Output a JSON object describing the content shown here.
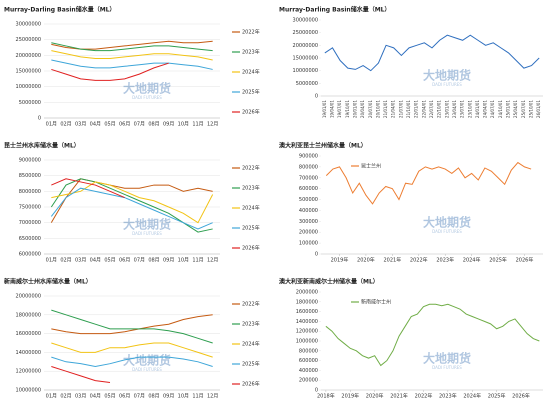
{
  "watermark": {
    "text": "大地期货",
    "subtext": "DADI FUTURES"
  },
  "chart_data": [
    {
      "type": "line",
      "title": "Murray-Darling Basin储水量（ML）",
      "legend": "right",
      "grid": true,
      "categories": [
        "01月",
        "02月",
        "03月",
        "04月",
        "05月",
        "06月",
        "07月",
        "08月",
        "09月",
        "10月",
        "11月",
        "12月"
      ],
      "ylim": [
        0,
        30000000
      ],
      "yticks": [
        0,
        5000000,
        10000000,
        15000000,
        20000000,
        25000000,
        30000000
      ],
      "series": [
        {
          "name": "2022年",
          "color": "#c55a11",
          "values": [
            23500000,
            22500000,
            22000000,
            22000000,
            22500000,
            23000000,
            23500000,
            24000000,
            24500000,
            24000000,
            24000000,
            24500000
          ]
        },
        {
          "name": "2023年",
          "color": "#2e9e4f",
          "values": [
            24000000,
            23000000,
            22000000,
            21500000,
            21500000,
            22000000,
            22500000,
            23000000,
            23000000,
            22500000,
            22000000,
            21500000
          ]
        },
        {
          "name": "2024年",
          "color": "#f2c314",
          "values": [
            21500000,
            20500000,
            19500000,
            19000000,
            19000000,
            19500000,
            20000000,
            20500000,
            20500000,
            20000000,
            19500000,
            18500000
          ]
        },
        {
          "name": "2025年",
          "color": "#3ea6d9",
          "values": [
            18500000,
            17500000,
            16500000,
            16000000,
            16000000,
            16500000,
            17000000,
            17500000,
            17500000,
            17000000,
            16500000,
            15500000
          ]
        },
        {
          "name": "2026年",
          "color": "#e02020",
          "values": [
            15500000,
            14000000,
            12500000,
            12000000,
            12000000,
            12500000,
            14000000,
            16000000,
            17500000,
            null,
            null,
            null
          ]
        }
      ]
    },
    {
      "type": "line",
      "title": "Murray-Darling Basin储水量（ML）",
      "xtick_rotation": -90,
      "grid": false,
      "categories": [
        "19/01/01",
        "19/04/01",
        "19/07/01",
        "19/10/01",
        "20/01/01",
        "20/04/01",
        "20/07/01",
        "20/10/01",
        "21/01/01",
        "21/04/01",
        "21/07/01",
        "21/10/01",
        "22/01/01",
        "22/04/01",
        "22/07/01",
        "22/10/01",
        "23/01/01",
        "23/04/01",
        "23/07/01",
        "23/10/01",
        "24/01/01",
        "24/04/01",
        "24/07/01",
        "24/10/01",
        "25/01/01",
        "25/04/01",
        "25/07/01",
        "25/10/01",
        "26/01/01"
      ],
      "ylim": [
        0,
        30000000
      ],
      "yticks": [
        0,
        5000000,
        10000000,
        15000000,
        20000000,
        25000000,
        30000000
      ],
      "color": "#2f6fbf",
      "values": [
        17000000,
        19000000,
        14000000,
        11000000,
        10500000,
        12000000,
        10000000,
        13000000,
        20000000,
        19000000,
        16000000,
        19000000,
        20000000,
        21000000,
        19000000,
        22000000,
        24000000,
        23000000,
        22000000,
        24000000,
        22000000,
        20000000,
        21000000,
        19000000,
        17000000,
        14000000,
        11000000,
        12000000,
        15000000
      ]
    },
    {
      "type": "line",
      "title": "昆士兰州水库储水量（ML）",
      "legend": "right",
      "grid": true,
      "categories": [
        "01月",
        "02月",
        "03月",
        "04月",
        "05月",
        "06月",
        "07月",
        "08月",
        "09月",
        "10月",
        "11月",
        "12月"
      ],
      "ylim": [
        6000000,
        9000000
      ],
      "yticks": [
        6000000,
        6500000,
        7000000,
        7500000,
        8000000,
        8500000,
        9000000
      ],
      "series": [
        {
          "name": "2022年",
          "color": "#c55a11",
          "values": [
            7000000,
            7800000,
            8400000,
            8300000,
            8200000,
            8100000,
            8100000,
            8200000,
            8200000,
            8000000,
            8100000,
            8000000
          ]
        },
        {
          "name": "2023年",
          "color": "#2e9e4f",
          "values": [
            7500000,
            8200000,
            8400000,
            8300000,
            8100000,
            7900000,
            7700000,
            7500000,
            7300000,
            7000000,
            6700000,
            6800000
          ]
        },
        {
          "name": "2024年",
          "color": "#f2c314",
          "values": [
            7800000,
            7900000,
            8000000,
            8300000,
            8200000,
            8000000,
            7800000,
            7700000,
            7500000,
            7300000,
            7000000,
            7900000
          ]
        },
        {
          "name": "2025年",
          "color": "#3ea6d9",
          "values": [
            7200000,
            7800000,
            8100000,
            8000000,
            7900000,
            7800000,
            7600000,
            7400000,
            7200000,
            7000000,
            6800000,
            7000000
          ]
        },
        {
          "name": "2026年",
          "color": "#e02020",
          "values": [
            8200000,
            8400000,
            8300000,
            8200000,
            8000000,
            7800000,
            null,
            null,
            null,
            null,
            null,
            null
          ]
        }
      ]
    },
    {
      "type": "line",
      "title": "澳大利亚昆士兰州储水量（ML）",
      "legend": "top-left",
      "grid": false,
      "xlim": [
        2018.3,
        2026.7
      ],
      "xticks": [
        {
          "value": 2019,
          "label": "2019年"
        },
        {
          "value": 2020,
          "label": "2020年"
        },
        {
          "value": 2021,
          "label": "2021年"
        },
        {
          "value": 2022,
          "label": "2022年"
        },
        {
          "value": 2023,
          "label": "2023年"
        },
        {
          "value": 2024,
          "label": "2024年"
        },
        {
          "value": 2025,
          "label": "2025年"
        },
        {
          "value": 2026,
          "label": "2026年"
        }
      ],
      "ylim": [
        0,
        900000
      ],
      "yticks": [
        0,
        100000,
        200000,
        300000,
        400000,
        500000,
        600000,
        700000,
        800000,
        900000
      ],
      "x": [
        2018.5,
        2018.75,
        2019,
        2019.25,
        2019.5,
        2019.75,
        2020,
        2020.25,
        2020.5,
        2020.75,
        2021,
        2021.25,
        2021.5,
        2021.75,
        2022,
        2022.25,
        2022.5,
        2022.75,
        2023,
        2023.25,
        2023.5,
        2023.75,
        2024,
        2024.25,
        2024.5,
        2024.75,
        2025,
        2025.25,
        2025.5,
        2025.75,
        2026,
        2026.25
      ],
      "series": [
        {
          "name": "昆士兰州",
          "color": "#ed7d31",
          "values": [
            720000,
            780000,
            800000,
            700000,
            560000,
            650000,
            540000,
            460000,
            560000,
            620000,
            600000,
            500000,
            650000,
            640000,
            760000,
            800000,
            780000,
            800000,
            780000,
            740000,
            790000,
            700000,
            740000,
            680000,
            790000,
            760000,
            700000,
            640000,
            770000,
            840000,
            800000,
            780000
          ]
        }
      ]
    },
    {
      "type": "line",
      "title": "新南威尔士州水库储水量（ML）",
      "legend": "right",
      "grid": true,
      "categories": [
        "01月",
        "02月",
        "03月",
        "04月",
        "05月",
        "06月",
        "07月",
        "08月",
        "09月",
        "10月",
        "11月",
        "12月"
      ],
      "ylim": [
        10000000,
        20000000
      ],
      "yticks": [
        10000000,
        12000000,
        14000000,
        16000000,
        18000000,
        20000000
      ],
      "series": [
        {
          "name": "2022年",
          "color": "#c55a11",
          "values": [
            16500000,
            16200000,
            16000000,
            16000000,
            16000000,
            16200000,
            16500000,
            16800000,
            17000000,
            17500000,
            17800000,
            18000000
          ]
        },
        {
          "name": "2023年",
          "color": "#2e9e4f",
          "values": [
            18500000,
            18000000,
            17500000,
            17000000,
            16500000,
            16500000,
            16500000,
            16500000,
            16300000,
            16000000,
            15500000,
            15000000
          ]
        },
        {
          "name": "2024年",
          "color": "#f2c314",
          "values": [
            15000000,
            14500000,
            14000000,
            14000000,
            14500000,
            14500000,
            14800000,
            15000000,
            15000000,
            14500000,
            14000000,
            13500000
          ]
        },
        {
          "name": "2025年",
          "color": "#3ea6d9",
          "values": [
            13500000,
            13000000,
            12800000,
            12500000,
            12800000,
            13200000,
            13500000,
            13500000,
            13500000,
            13300000,
            13000000,
            12500000
          ]
        },
        {
          "name": "2026年",
          "color": "#e02020",
          "values": [
            12500000,
            12000000,
            11500000,
            11000000,
            10800000,
            null,
            null,
            null,
            null,
            null,
            null,
            null
          ]
        }
      ]
    },
    {
      "type": "line",
      "title": "澳大利亚新南威尔士州储水量（ML）",
      "legend": "top-left",
      "grid": false,
      "xlim": [
        2017.8,
        2026.9
      ],
      "xticks": [
        {
          "value": 2018,
          "label": "2018年"
        },
        {
          "value": 2019,
          "label": "2019年"
        },
        {
          "value": 2020,
          "label": "2020年"
        },
        {
          "value": 2021,
          "label": "2021年"
        },
        {
          "value": 2022,
          "label": "2022年"
        },
        {
          "value": 2023,
          "label": "2023年"
        },
        {
          "value": 2024,
          "label": "2024年"
        },
        {
          "value": 2025,
          "label": "2025年"
        },
        {
          "value": 2026,
          "label": "2026年"
        }
      ],
      "ylim": [
        0,
        2000000
      ],
      "yticks": [
        0,
        200000,
        400000,
        600000,
        800000,
        1000000,
        1200000,
        1400000,
        1600000,
        1800000,
        2000000
      ],
      "x": [
        2018,
        2018.25,
        2018.5,
        2018.75,
        2019,
        2019.25,
        2019.5,
        2019.75,
        2020,
        2020.25,
        2020.5,
        2020.75,
        2021,
        2021.25,
        2021.5,
        2021.75,
        2022,
        2022.25,
        2022.5,
        2022.75,
        2023,
        2023.25,
        2023.5,
        2023.75,
        2024,
        2024.25,
        2024.5,
        2024.75,
        2025,
        2025.25,
        2025.5,
        2025.75,
        2026,
        2026.25,
        2026.5,
        2026.75
      ],
      "series": [
        {
          "name": "新南威尔士州",
          "color": "#70ad47",
          "values": [
            1300000,
            1200000,
            1050000,
            950000,
            850000,
            800000,
            700000,
            650000,
            700000,
            500000,
            600000,
            800000,
            1100000,
            1300000,
            1500000,
            1550000,
            1700000,
            1750000,
            1750000,
            1720000,
            1750000,
            1700000,
            1650000,
            1550000,
            1500000,
            1450000,
            1400000,
            1350000,
            1250000,
            1300000,
            1400000,
            1450000,
            1300000,
            1150000,
            1050000,
            1000000
          ]
        }
      ]
    }
  ]
}
